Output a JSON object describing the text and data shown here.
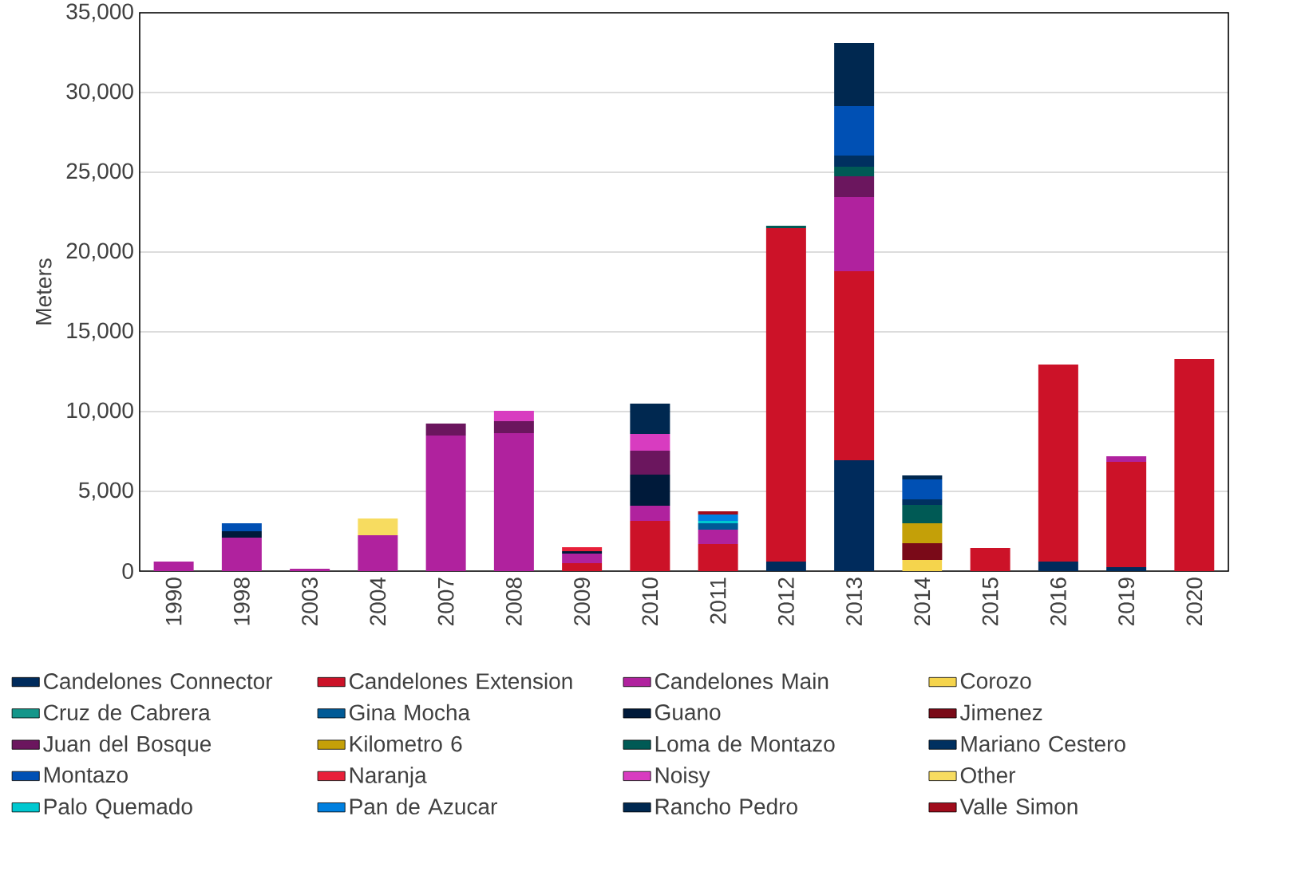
{
  "chart_data": {
    "type": "bar",
    "stacked": true,
    "ylabel": "Meters",
    "categories": [
      "1990",
      "1998",
      "2003",
      "2004",
      "2007",
      "2008",
      "2009",
      "2010",
      "2011",
      "2012",
      "2013",
      "2014",
      "2015",
      "2016",
      "2019",
      "2020"
    ],
    "ylim": [
      0,
      35000
    ],
    "yticks": [
      {
        "value": 0,
        "label": "0"
      },
      {
        "value": 5000,
        "label": "5,000"
      },
      {
        "value": 10000,
        "label": "10,000"
      },
      {
        "value": 15000,
        "label": "15,000"
      },
      {
        "value": 20000,
        "label": "20,000"
      },
      {
        "value": 25000,
        "label": "25,000"
      },
      {
        "value": 30000,
        "label": "30,000"
      },
      {
        "value": 35000,
        "label": "35,000"
      }
    ],
    "grid": "y",
    "legend": "bottom",
    "series": [
      {
        "name": "Candelones Connector",
        "color": "#002b5c",
        "values": [
          null,
          null,
          null,
          null,
          null,
          null,
          null,
          null,
          null,
          600,
          6950,
          null,
          null,
          600,
          250,
          null
        ]
      },
      {
        "name": "Candelones Extension",
        "color": "#cc1228",
        "values": [
          null,
          null,
          null,
          null,
          null,
          null,
          500,
          3150,
          1700,
          20900,
          11850,
          null,
          1450,
          12350,
          6600,
          13300
        ]
      },
      {
        "name": "Candelones Main",
        "color": "#b0229e",
        "values": [
          600,
          2100,
          150,
          2250,
          8500,
          8650,
          600,
          950,
          900,
          null,
          4650,
          null,
          null,
          null,
          350,
          null
        ]
      },
      {
        "name": "Corozo",
        "color": "#f5d44c",
        "values": [
          null,
          null,
          null,
          null,
          null,
          null,
          null,
          null,
          null,
          null,
          null,
          700,
          null,
          null,
          null,
          null
        ]
      },
      {
        "name": "Cruz de Cabrera",
        "color": "#14968a",
        "values": [
          null,
          null,
          null,
          null,
          null,
          null,
          null,
          null,
          null,
          null,
          null,
          null,
          null,
          null,
          null,
          null
        ]
      },
      {
        "name": "Gina Mocha",
        "color": "#005a96",
        "values": [
          null,
          null,
          null,
          null,
          null,
          null,
          null,
          null,
          400,
          null,
          null,
          null,
          null,
          null,
          null,
          null
        ]
      },
      {
        "name": "Guano",
        "color": "#001a3a",
        "values": [
          null,
          400,
          null,
          null,
          null,
          null,
          150,
          1950,
          null,
          null,
          null,
          null,
          null,
          null,
          null,
          null
        ]
      },
      {
        "name": "Jimenez",
        "color": "#7a0a18",
        "values": [
          null,
          null,
          null,
          null,
          null,
          null,
          null,
          null,
          null,
          null,
          null,
          1050,
          null,
          null,
          null,
          null
        ]
      },
      {
        "name": "Juan del Bosque",
        "color": "#6b165e",
        "values": [
          null,
          null,
          null,
          null,
          750,
          750,
          null,
          1500,
          null,
          null,
          1300,
          null,
          null,
          null,
          null,
          null
        ]
      },
      {
        "name": "Kilometro 6",
        "color": "#c4a008",
        "values": [
          null,
          null,
          null,
          null,
          null,
          null,
          null,
          null,
          null,
          null,
          null,
          1250,
          null,
          null,
          null,
          null
        ]
      },
      {
        "name": "Loma de Montazo",
        "color": "#005a55",
        "values": [
          null,
          null,
          null,
          null,
          null,
          null,
          null,
          null,
          null,
          150,
          600,
          1150,
          null,
          null,
          null,
          null
        ]
      },
      {
        "name": "Mariano Cestero",
        "color": "#003060",
        "values": [
          null,
          null,
          null,
          null,
          null,
          null,
          null,
          null,
          null,
          null,
          700,
          350,
          null,
          null,
          null,
          null
        ]
      },
      {
        "name": "Montazo",
        "color": "#0050b4",
        "values": [
          null,
          500,
          null,
          null,
          null,
          null,
          null,
          null,
          null,
          null,
          3100,
          1250,
          null,
          null,
          null,
          null
        ]
      },
      {
        "name": "Naranja",
        "color": "#e8203a",
        "values": [
          null,
          null,
          null,
          null,
          null,
          null,
          250,
          null,
          null,
          null,
          null,
          null,
          null,
          null,
          null,
          null
        ]
      },
      {
        "name": "Noisy",
        "color": "#d83cc0",
        "values": [
          null,
          null,
          null,
          null,
          null,
          650,
          null,
          1050,
          null,
          null,
          null,
          null,
          null,
          null,
          null,
          null
        ]
      },
      {
        "name": "Other",
        "color": "#f7dc60",
        "values": [
          null,
          null,
          null,
          1050,
          null,
          null,
          null,
          null,
          null,
          null,
          null,
          null,
          null,
          null,
          null,
          null
        ]
      },
      {
        "name": "Palo Quemado",
        "color": "#00c8d0",
        "values": [
          null,
          null,
          null,
          null,
          null,
          null,
          null,
          null,
          150,
          null,
          null,
          null,
          null,
          null,
          null,
          null
        ]
      },
      {
        "name": "Pan de Azucar",
        "color": "#0080e0",
        "values": [
          null,
          null,
          null,
          null,
          null,
          null,
          null,
          null,
          400,
          null,
          null,
          null,
          null,
          null,
          null,
          null
        ]
      },
      {
        "name": "Rancho Pedro",
        "color": "#002850",
        "values": [
          null,
          null,
          null,
          null,
          null,
          null,
          null,
          1900,
          null,
          null,
          3950,
          250,
          null,
          null,
          null,
          null
        ]
      },
      {
        "name": "Valle Simon",
        "color": "#a00c1c",
        "values": [
          null,
          null,
          null,
          null,
          null,
          null,
          null,
          null,
          200,
          null,
          null,
          null,
          null,
          null,
          null,
          null
        ]
      }
    ]
  }
}
